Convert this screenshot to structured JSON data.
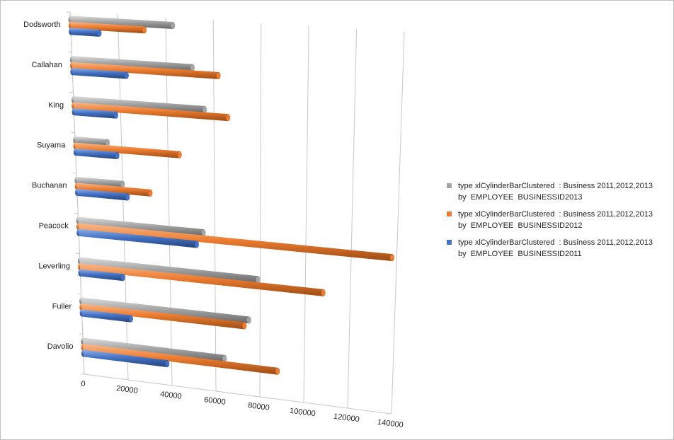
{
  "chart_data": {
    "type": "bar",
    "orientation": "horizontal",
    "style": "3d-cylinder-clustered",
    "title": "",
    "xlabel": "",
    "ylabel": "",
    "categories": [
      "Davolio",
      "Fuller",
      "Leverling",
      "Peacock",
      "Buchanan",
      "Suyama",
      "King",
      "Callahan",
      "Dodsworth"
    ],
    "xlim": [
      0,
      140000
    ],
    "ticks": [
      "0",
      "20000",
      "40000",
      "60000",
      "80000",
      "100000",
      "120000",
      "140000"
    ],
    "grid": true,
    "legend_position": "right",
    "series": [
      {
        "name": "type xlCylinderBarClustered  : Business 2011,2012,2013 by  EMPLOYEE  BUSINESSID2011",
        "name_lines": [
          "type xlCylinderBarClustered  : Business 2011,2012,2013",
          "by  EMPLOYEE  BUSINESSID2011"
        ],
        "color": "#4472c4",
        "values": [
          38000,
          22000,
          19000,
          52000,
          22000,
          18000,
          18000,
          23000,
          12000
        ]
      },
      {
        "name": "type xlCylinderBarClustered  : Business 2011,2012,2013 by  EMPLOYEE  BUSINESSID2012",
        "name_lines": [
          "type xlCylinderBarClustered  : Business 2011,2012,2013",
          "by  EMPLOYEE  BUSINESSID2012"
        ],
        "color": "#ed7d31",
        "values": [
          88000,
          73000,
          108000,
          138000,
          32000,
          45000,
          66000,
          62000,
          31000
        ]
      },
      {
        "name": "type xlCylinderBarClustered  : Business 2011,2012,2013 by  EMPLOYEE  BUSINESSID2013",
        "name_lines": [
          "type xlCylinderBarClustered  : Business 2011,2012,2013",
          "by  EMPLOYEE  BUSINESSID2013"
        ],
        "color": "#a5a5a5",
        "values": [
          64000,
          75000,
          79000,
          55000,
          20000,
          14000,
          56000,
          51000,
          43000
        ]
      }
    ]
  }
}
